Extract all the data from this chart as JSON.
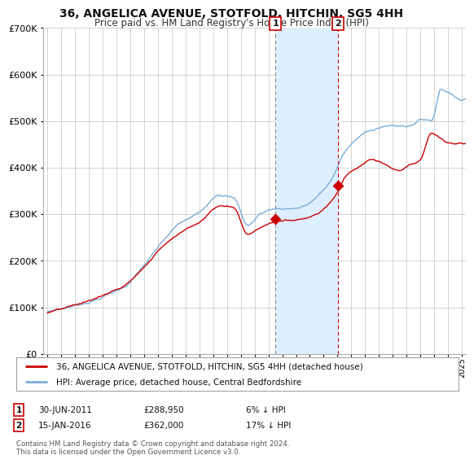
{
  "title": "36, ANGELICA AVENUE, STOTFOLD, HITCHIN, SG5 4HH",
  "subtitle": "Price paid vs. HM Land Registry's House Price Index (HPI)",
  "sale1_date": "30-JUN-2011",
  "sale1_price": 288950,
  "sale1_label": "6% ↓ HPI",
  "sale1_x": 2011.5,
  "sale2_date": "15-JAN-2016",
  "sale2_price": 362000,
  "sale2_label": "17% ↓ HPI",
  "sale2_x": 2016.04,
  "marker1_x": 2011.5,
  "marker1_y": 288950,
  "marker2_x": 2016.04,
  "marker2_y": 362000,
  "red_line_label": "36, ANGELICA AVENUE, STOTFOLD, HITCHIN, SG5 4HH (detached house)",
  "blue_line_label": "HPI: Average price, detached house, Central Bedfordshire",
  "footnote": "Contains HM Land Registry data © Crown copyright and database right 2024.\nThis data is licensed under the Open Government Licence v3.0.",
  "red_color": "#cc0000",
  "blue_color": "#7aaddb",
  "shade_color": "#ddeeff",
  "grid_color": "#cccccc",
  "background_color": "#ffffff",
  "ylim": [
    0,
    700000
  ],
  "xlim_start": 1994.7,
  "xlim_end": 2025.3
}
